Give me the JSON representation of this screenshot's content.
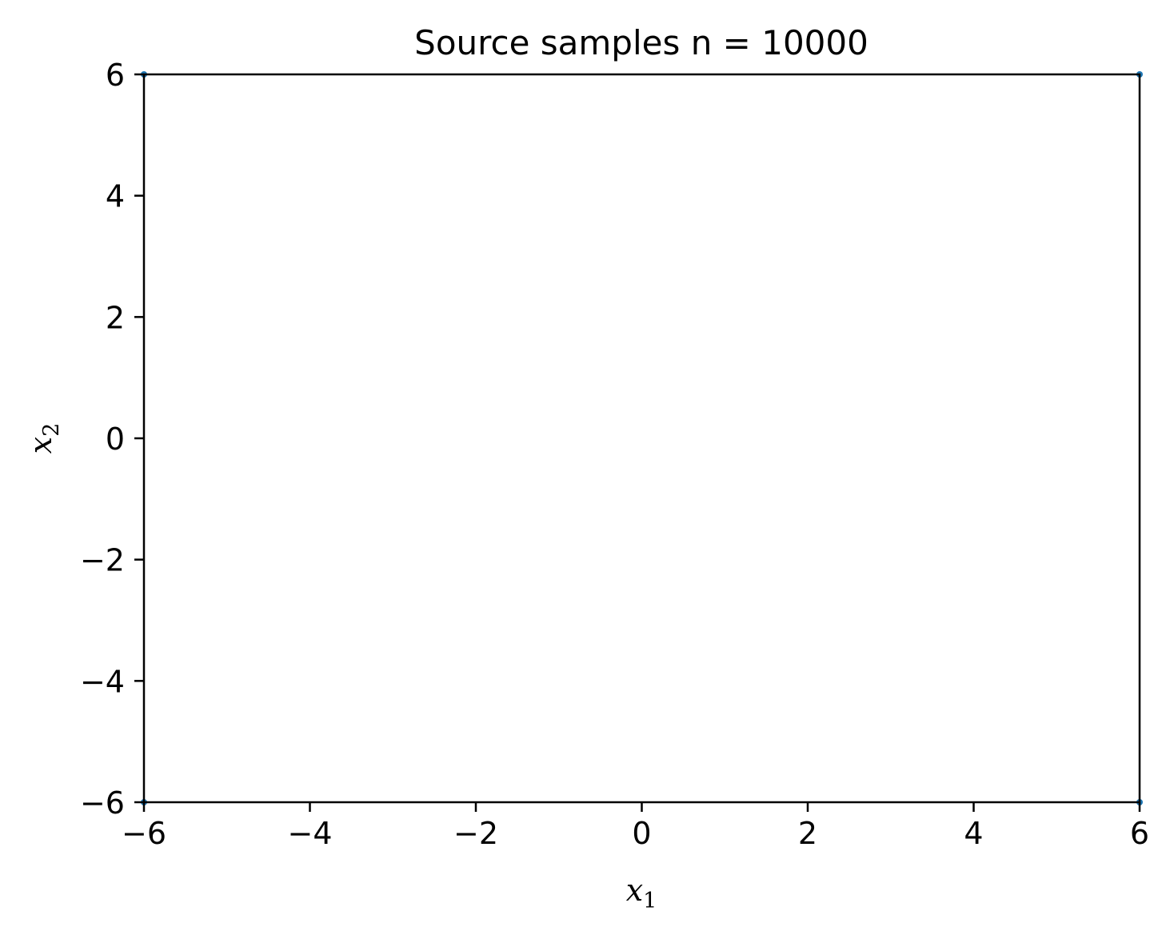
{
  "chart_data": {
    "type": "scatter",
    "title": "Source samples n = 10000",
    "xlabel": {
      "base": "x",
      "sub": "1"
    },
    "ylabel": {
      "base": "x",
      "sub": "2"
    },
    "xlim": [
      -6,
      6
    ],
    "ylim": [
      -6,
      6
    ],
    "xticks": [
      -6,
      -4,
      -2,
      0,
      2,
      4,
      6
    ],
    "yticks": [
      -6,
      -4,
      -2,
      0,
      2,
      4,
      6
    ],
    "grid": false,
    "legend": "none",
    "series": [
      {
        "color": "#1f77b4",
        "points": [
          {
            "x": -6,
            "y": 6
          },
          {
            "x": 6,
            "y": 6
          },
          {
            "x": -6,
            "y": -6
          },
          {
            "x": 6,
            "y": -6
          }
        ]
      }
    ]
  }
}
